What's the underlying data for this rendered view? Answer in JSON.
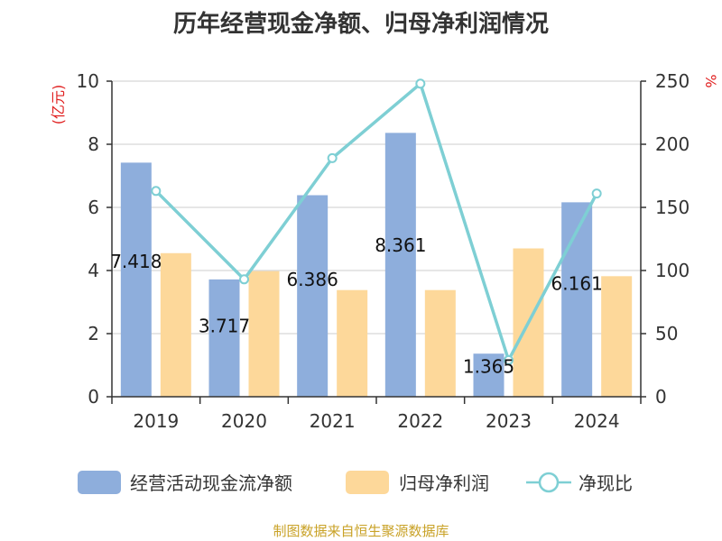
{
  "title": "历年经营现金净额、归母净利润情况",
  "source": "制图数据来自恒生聚源数据库",
  "colors": {
    "bar1": "#8eaedc",
    "bar2": "#fdd89a",
    "line": "#7ecfd4",
    "unit": "#e02020",
    "source": "#c9a227",
    "axis": "#333333",
    "grid": "#cccccc"
  },
  "chart_data": {
    "type": "bar",
    "categories": [
      "2019",
      "2020",
      "2021",
      "2022",
      "2023",
      "2024"
    ],
    "series": [
      {
        "name": "经营活动现金流净额",
        "type": "bar",
        "axis": "left",
        "values": [
          7.418,
          3.717,
          6.386,
          8.361,
          1.365,
          6.161
        ],
        "labels": [
          "7.418",
          "3.717",
          "6.386",
          "8.361",
          "1.365",
          "6.161"
        ]
      },
      {
        "name": "归母净利润",
        "type": "bar",
        "axis": "left",
        "values": [
          4.55,
          3.98,
          3.38,
          3.38,
          4.7,
          3.82
        ]
      },
      {
        "name": "净现比",
        "type": "line",
        "axis": "right",
        "values": [
          163,
          93,
          189,
          248,
          29,
          161
        ]
      }
    ],
    "y_left": {
      "unit": "(亿元)",
      "min": 0,
      "max": 10,
      "ticks": [
        "0",
        "2",
        "4",
        "6",
        "8",
        "10"
      ]
    },
    "y_right": {
      "unit": "%",
      "min": 0,
      "max": 250,
      "ticks": [
        "0",
        "50",
        "100",
        "150",
        "200",
        "250"
      ]
    },
    "grid": true,
    "legend": "bottom"
  }
}
